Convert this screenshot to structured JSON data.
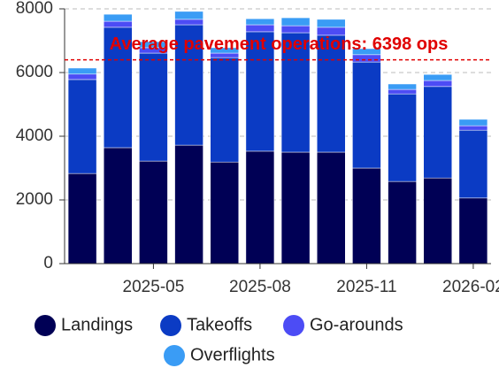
{
  "chart_data": {
    "type": "bar",
    "stacked": true,
    "categories": [
      null,
      null,
      "2025-05",
      null,
      null,
      "2025-08",
      null,
      null,
      "2025-11",
      null,
      null,
      "2026-02"
    ],
    "series": [
      {
        "name": "Landings",
        "color": "#000055",
        "values": [
          2830,
          3640,
          3220,
          3720,
          3190,
          3530,
          3500,
          3500,
          3000,
          2580,
          2690,
          2060
        ]
      },
      {
        "name": "Takeoffs",
        "color": "#0b3bc4",
        "values": [
          2950,
          3780,
          3390,
          3780,
          3280,
          3750,
          3750,
          3670,
          3330,
          2750,
          2870,
          2130
        ]
      },
      {
        "name": "Go-arounds",
        "color": "#4c4cf5",
        "values": [
          170,
          190,
          170,
          170,
          140,
          220,
          220,
          250,
          230,
          140,
          190,
          140
        ]
      },
      {
        "name": "Overflights",
        "color": "#3a9cf5",
        "values": [
          190,
          220,
          190,
          250,
          170,
          190,
          250,
          250,
          190,
          170,
          190,
          200
        ]
      }
    ],
    "annotation": {
      "value": 6398,
      "label": "Average pavement operations: 6398 ops",
      "color": "#e00000"
    },
    "ylim": [
      0,
      8000
    ],
    "yticks": [
      0,
      2000,
      4000,
      6000,
      8000
    ],
    "grid": true
  }
}
